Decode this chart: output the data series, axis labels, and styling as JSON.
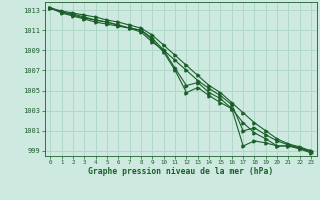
{
  "xlabel": "Graphe pression niveau de la mer (hPa)",
  "ylabel": "",
  "background_color": "#ceeae0",
  "grid_color": "#b0d8c8",
  "line_color": "#1a5e2a",
  "ylim": [
    998.5,
    1013.8
  ],
  "xlim": [
    -0.5,
    23.5
  ],
  "yticks": [
    999,
    1001,
    1003,
    1005,
    1007,
    1009,
    1011,
    1013
  ],
  "xticks": [
    0,
    1,
    2,
    3,
    4,
    5,
    6,
    7,
    8,
    9,
    10,
    11,
    12,
    13,
    14,
    15,
    16,
    17,
    18,
    19,
    20,
    21,
    22,
    23
  ],
  "series": [
    [
      1013.2,
      1012.8,
      1012.5,
      1012.2,
      1012.0,
      1011.8,
      1011.5,
      1011.2,
      1011.0,
      1010.2,
      1009.0,
      1007.2,
      1005.5,
      1005.8,
      1004.8,
      1004.2,
      1003.2,
      999.5,
      1000.0,
      999.8,
      999.5,
      999.5,
      999.2,
      998.8
    ],
    [
      1013.2,
      1012.7,
      1012.4,
      1012.1,
      1011.8,
      1011.6,
      1011.4,
      1011.2,
      1011.0,
      1010.0,
      1008.8,
      1007.0,
      1004.8,
      1005.3,
      1004.5,
      1003.8,
      1003.2,
      1001.8,
      1000.8,
      1000.2,
      999.5,
      999.5,
      999.3,
      999.0
    ],
    [
      1013.2,
      1012.9,
      1012.7,
      1012.5,
      1012.3,
      1012.0,
      1011.8,
      1011.5,
      1011.2,
      1010.5,
      1009.5,
      1008.5,
      1007.5,
      1006.5,
      1005.5,
      1004.8,
      1003.8,
      1002.8,
      1001.8,
      1001.0,
      1000.2,
      999.7,
      999.4,
      999.0
    ],
    [
      1013.2,
      1012.8,
      1012.6,
      1012.3,
      1012.0,
      1011.8,
      1011.5,
      1011.2,
      1010.8,
      1009.8,
      1009.0,
      1008.0,
      1007.0,
      1006.0,
      1005.2,
      1004.5,
      1003.6,
      1001.0,
      1001.3,
      1000.6,
      1000.0,
      999.6,
      999.3,
      998.9
    ]
  ]
}
